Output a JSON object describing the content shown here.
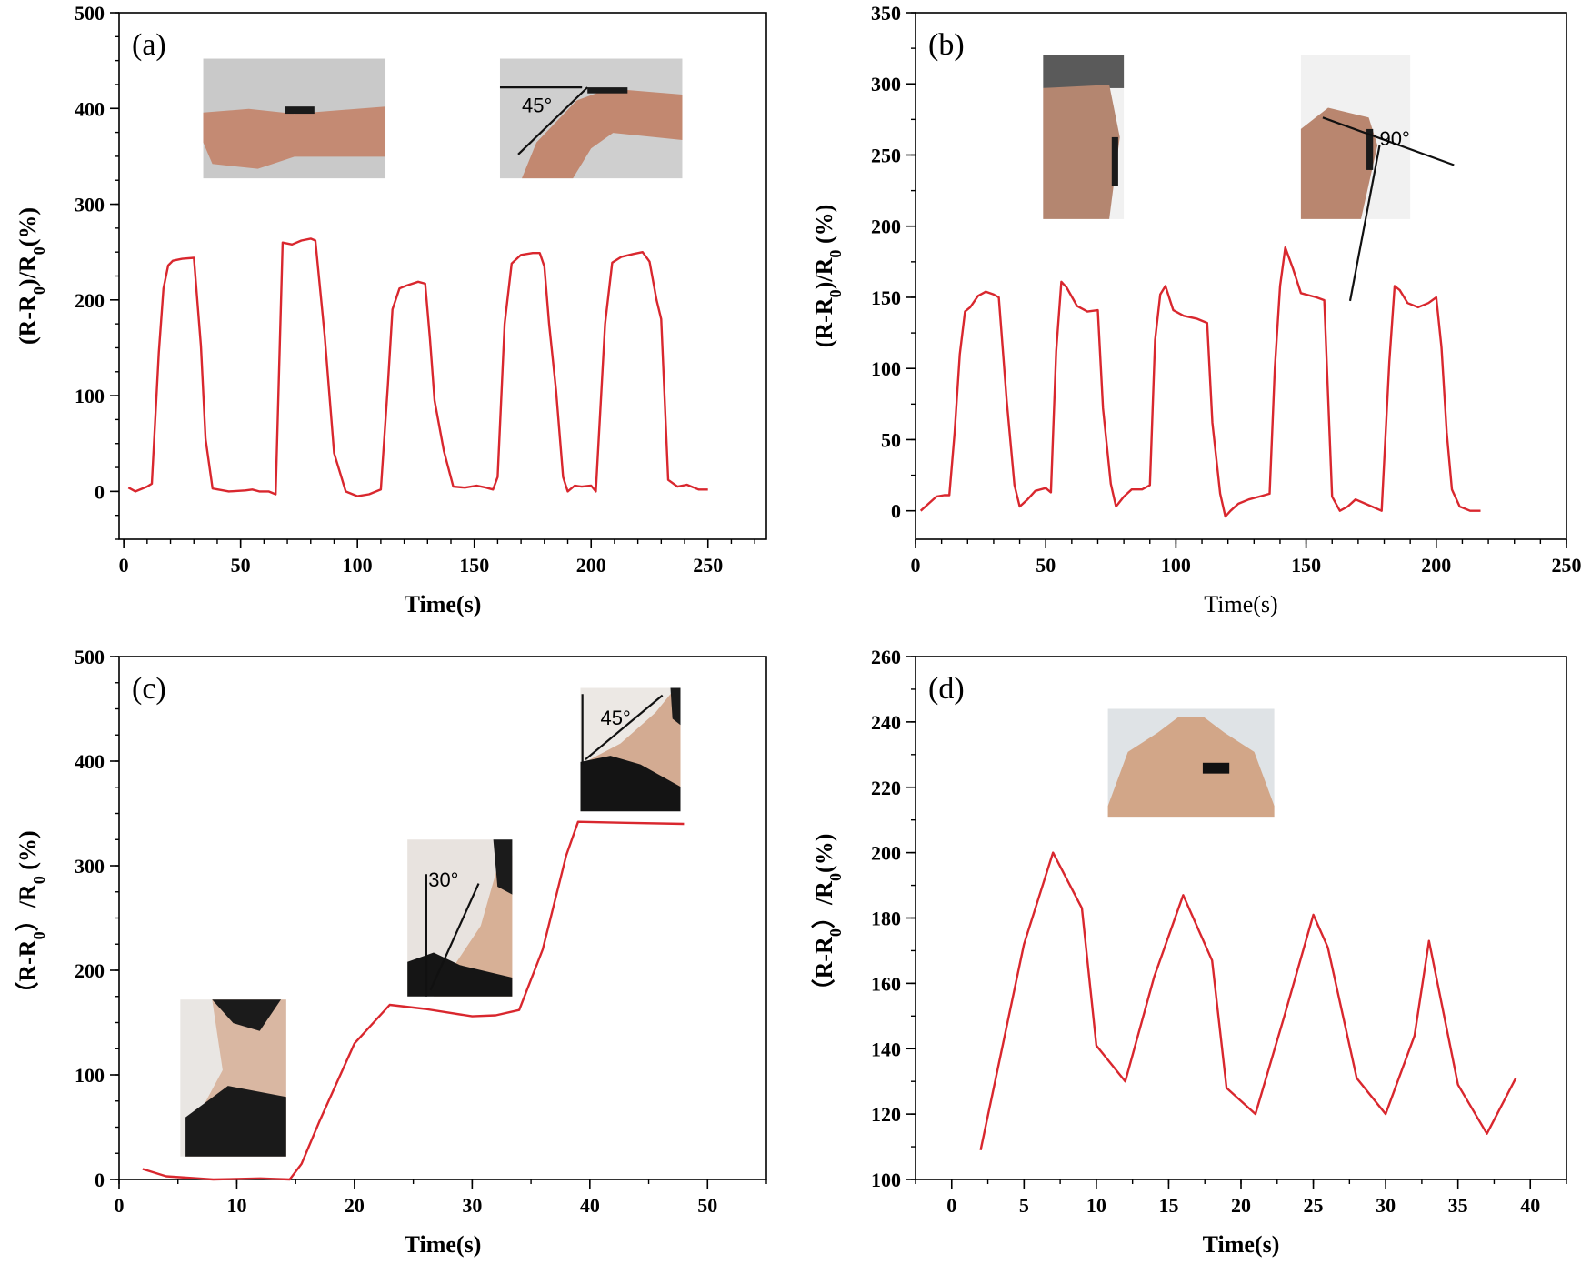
{
  "colors": {
    "series": "#d9272e",
    "axis": "#000000"
  },
  "chart_data": [
    {
      "id": "a",
      "type": "line",
      "panel_label": "(a)",
      "xlabel": "Time(s)",
      "ylabel": "(R-R0)/R0(%)",
      "label_weight": "bold",
      "xlim": [
        -2,
        275
      ],
      "ylim": [
        -50,
        500
      ],
      "xticks": [
        0,
        50,
        100,
        150,
        200,
        250
      ],
      "yticks": [
        0,
        100,
        200,
        300,
        400,
        500
      ],
      "minor_x": 10,
      "minor_y": 25,
      "photos": [
        {
          "name": "wrist-straight-photo",
          "x0": 34,
          "x1": 112,
          "y1": 452,
          "y0": 327,
          "annotation": ""
        },
        {
          "name": "wrist-bent-photo",
          "x0": 161,
          "x1": 239,
          "y1": 452,
          "y0": 327,
          "annotation": "45°"
        }
      ],
      "series": [
        {
          "x": [
            2,
            5,
            10,
            12,
            15,
            17,
            19,
            21,
            25,
            30,
            33,
            35,
            38,
            45,
            52,
            55,
            58,
            62,
            65,
            68,
            72,
            76,
            80,
            82,
            86,
            90,
            95,
            100,
            105,
            110,
            113,
            115,
            118,
            121,
            126,
            129,
            131,
            133,
            137,
            141,
            146,
            151,
            155,
            158,
            160,
            163,
            166,
            170,
            175,
            178,
            180,
            182,
            185,
            188,
            190,
            193,
            196,
            200,
            202,
            206,
            209,
            213,
            218,
            222,
            225,
            228,
            230,
            233,
            237,
            241,
            246,
            250
          ],
          "y": [
            4,
            0,
            5,
            8,
            145,
            212,
            236,
            241,
            243,
            244,
            152,
            55,
            3,
            0,
            1,
            2,
            0,
            0,
            -3,
            260,
            258,
            262,
            264,
            262,
            162,
            40,
            0,
            -5,
            -3,
            2,
            110,
            190,
            212,
            215,
            219,
            217,
            160,
            95,
            42,
            5,
            4,
            6,
            4,
            2,
            15,
            175,
            238,
            247,
            249,
            249,
            235,
            175,
            105,
            15,
            0,
            6,
            5,
            6,
            0,
            175,
            239,
            245,
            248,
            250,
            240,
            200,
            180,
            12,
            5,
            7,
            2,
            2
          ]
        }
      ]
    },
    {
      "id": "b",
      "type": "line",
      "panel_label": "(b)",
      "xlabel": "Time(s)",
      "ylabel": "(R-R0)/R0 (%)",
      "label_weight": "bold",
      "xlabel_weight": "normal",
      "xlim": [
        0,
        250
      ],
      "ylim": [
        -20,
        350
      ],
      "xticks": [
        0,
        50,
        100,
        150,
        200,
        250
      ],
      "yticks": [
        0,
        50,
        100,
        150,
        200,
        250,
        300,
        350
      ],
      "minor_x": 10,
      "minor_y": 25,
      "photos": [
        {
          "name": "knee-straight-photo",
          "x0": 49,
          "x1": 80,
          "y1": 320,
          "y0": 205,
          "annotation": ""
        },
        {
          "name": "knee-bent-photo",
          "x0": 148,
          "x1": 190,
          "y1": 320,
          "y0": 205,
          "annotation": "90°"
        }
      ],
      "series": [
        {
          "x": [
            2,
            5,
            8,
            11,
            13,
            15,
            17,
            19,
            21,
            24,
            27,
            30,
            32,
            35,
            38,
            40,
            43,
            46,
            50,
            52,
            54,
            56,
            58,
            62,
            66,
            70,
            72,
            75,
            77,
            80,
            83,
            87,
            90,
            92,
            94,
            96,
            99,
            103,
            108,
            112,
            114,
            117,
            119,
            121,
            124,
            128,
            132,
            136,
            138,
            140,
            142,
            145,
            148,
            154,
            157,
            160,
            163,
            166,
            169,
            174,
            179,
            182,
            184,
            186,
            189,
            193,
            197,
            200,
            202,
            204,
            206,
            209,
            213,
            217
          ],
          "y": [
            0,
            5,
            10,
            11,
            11,
            55,
            110,
            140,
            143,
            151,
            154,
            152,
            150,
            78,
            18,
            3,
            8,
            14,
            16,
            13,
            112,
            161,
            157,
            144,
            140,
            141,
            72,
            19,
            3,
            10,
            15,
            15,
            18,
            120,
            152,
            158,
            141,
            137,
            135,
            132,
            62,
            12,
            -4,
            0,
            5,
            8,
            10,
            12,
            100,
            158,
            185,
            170,
            153,
            150,
            148,
            10,
            0,
            3,
            8,
            4,
            0,
            105,
            158,
            155,
            146,
            143,
            146,
            150,
            115,
            55,
            15,
            3,
            0,
            0
          ]
        }
      ]
    },
    {
      "id": "c",
      "type": "line",
      "panel_label": "(c)",
      "xlabel": "Time(s)",
      "ylabel": "（R-R0）/R0 (%)",
      "label_weight": "bold",
      "xlim": [
        0,
        55
      ],
      "ylim": [
        0,
        500
      ],
      "xticks": [
        0,
        10,
        20,
        30,
        40,
        50
      ],
      "yticks": [
        0,
        100,
        200,
        300,
        400,
        500
      ],
      "minor_x": 5,
      "minor_y": 25,
      "photos": [
        {
          "name": "neck-straight-photo",
          "x0": 5.2,
          "x1": 14.2,
          "y1": 172,
          "y0": 22,
          "annotation": ""
        },
        {
          "name": "neck-30deg-photo",
          "x0": 24.5,
          "x1": 33.4,
          "y1": 325,
          "y0": 175,
          "annotation": "30°"
        },
        {
          "name": "neck-45deg-photo",
          "x0": 39.2,
          "x1": 47.7,
          "y1": 470,
          "y0": 352,
          "annotation": "45°"
        }
      ],
      "series": [
        {
          "x": [
            2,
            4,
            8,
            12,
            14.5,
            15.5,
            17,
            20,
            23,
            26,
            30,
            32,
            34,
            36,
            38,
            39,
            43,
            48
          ],
          "y": [
            10,
            3,
            0,
            1,
            0,
            15,
            55,
            130,
            167,
            163,
            156,
            157,
            162,
            220,
            310,
            342,
            341,
            340
          ]
        }
      ]
    },
    {
      "id": "d",
      "type": "line",
      "panel_label": "(d)",
      "xlabel": "Time(s)",
      "ylabel": "（R-R0）/R0(%)",
      "label_weight": "bold",
      "xlim": [
        -2.5,
        42.5
      ],
      "ylim": [
        100,
        260
      ],
      "xticks": [
        0,
        5,
        10,
        15,
        20,
        25,
        30,
        35,
        40
      ],
      "yticks": [
        100,
        120,
        140,
        160,
        180,
        200,
        220,
        240,
        260
      ],
      "minor_x": 2.5,
      "minor_y": 10,
      "photos": [
        {
          "name": "chest-photo",
          "x0": 10.8,
          "x1": 22.3,
          "y1": 244,
          "y0": 211,
          "annotation": ""
        }
      ],
      "series": [
        {
          "x": [
            2,
            5,
            7,
            9,
            10,
            12,
            14,
            16,
            18,
            19,
            21,
            23,
            25,
            26,
            28,
            30,
            32,
            33,
            35,
            37,
            39
          ],
          "y": [
            109,
            172,
            200,
            183,
            141,
            130,
            162,
            187,
            167,
            128,
            120,
            150,
            181,
            171,
            131,
            120,
            144,
            173,
            129,
            114,
            131
          ]
        }
      ]
    }
  ]
}
